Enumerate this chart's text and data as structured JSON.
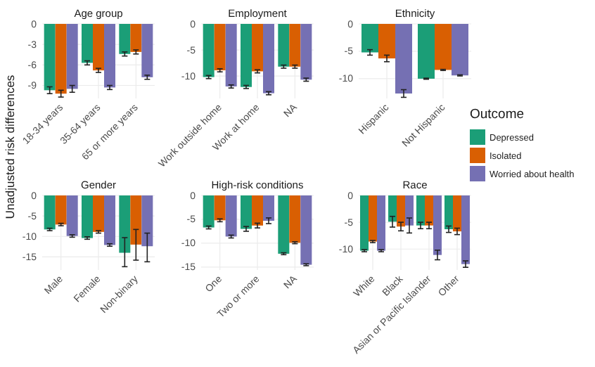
{
  "chart_data": [
    {
      "type": "bar",
      "title": "Age group",
      "ylabel": "Unadjusted risk differences",
      "legend_title": "Outcome",
      "legend": "right",
      "grid": true,
      "categories": [
        "18-34 years",
        "35-64 years",
        "65 or more years"
      ],
      "ylim": [
        -10.9,
        0
      ],
      "yticks": [
        0,
        -3,
        -6,
        -9
      ],
      "series": [
        {
          "name": "Depressed",
          "color": "#1b9e77",
          "values": [
            -9.7,
            -5.7,
            -4.4
          ],
          "errors": [
            0.5,
            0.3,
            0.3
          ]
        },
        {
          "name": "Isolated",
          "color": "#d95f02",
          "values": [
            -10.2,
            -6.8,
            -4.1
          ],
          "errors": [
            0.5,
            0.3,
            0.3
          ]
        },
        {
          "name": "Worried about health",
          "color": "#7570b3",
          "values": [
            -9.5,
            -9.3,
            -7.8
          ],
          "errors": [
            0.5,
            0.3,
            0.3
          ]
        }
      ]
    },
    {
      "type": "bar",
      "title": "Employment",
      "grid": true,
      "categories": [
        "Work outside home",
        "Work at home",
        "NA"
      ],
      "ylim": [
        -14.3,
        0
      ],
      "yticks": [
        0,
        -5,
        -10
      ],
      "series": [
        {
          "color": "#1b9e77",
          "values": [
            -10.2,
            -12.1,
            -8.2
          ],
          "errors": [
            0.3,
            0.3,
            0.3
          ]
        },
        {
          "color": "#d95f02",
          "values": [
            -8.9,
            -9.1,
            -8.2
          ],
          "errors": [
            0.3,
            0.3,
            0.3
          ]
        },
        {
          "color": "#7570b3",
          "values": [
            -12.0,
            -13.3,
            -10.7
          ],
          "errors": [
            0.3,
            0.3,
            0.3
          ]
        }
      ]
    },
    {
      "type": "bar",
      "title": "Ethnicity",
      "grid": true,
      "categories": [
        "Hispanic",
        "Not Hispanic"
      ],
      "ylim": [
        -13.6,
        0
      ],
      "yticks": [
        0,
        -5,
        -10
      ],
      "series": [
        {
          "color": "#1b9e77",
          "values": [
            -5.2,
            -10.0
          ],
          "errors": [
            0.5,
            0.1
          ]
        },
        {
          "color": "#d95f02",
          "values": [
            -6.3,
            -8.4
          ],
          "errors": [
            0.6,
            0.1
          ]
        },
        {
          "color": "#7570b3",
          "values": [
            -12.7,
            -9.4
          ],
          "errors": [
            0.7,
            0.1
          ]
        }
      ]
    },
    {
      "type": "bar",
      "title": "Gender",
      "grid": true,
      "categories": [
        "Male",
        "Female",
        "Non-binary"
      ],
      "ylim": [
        -18.2,
        0
      ],
      "yticks": [
        0,
        -5,
        -10,
        -15
      ],
      "series": [
        {
          "color": "#1b9e77",
          "values": [
            -8.3,
            -10.4,
            -14.0
          ],
          "errors": [
            0.3,
            0.3,
            [
              -17.4,
              -10.3
            ]
          ]
        },
        {
          "color": "#d95f02",
          "values": [
            -7.1,
            -8.9,
            -12.0
          ],
          "errors": [
            0.3,
            0.3,
            [
              -15.8,
              -8.3
            ]
          ]
        },
        {
          "color": "#7570b3",
          "values": [
            -9.9,
            -12.1,
            -12.4
          ],
          "errors": [
            0.3,
            0.3,
            [
              -16.2,
              -9.2
            ]
          ]
        }
      ]
    },
    {
      "type": "bar",
      "title": "High-risk conditions",
      "grid": true,
      "categories": [
        "One",
        "Two or more",
        "NA"
      ],
      "ylim": [
        -15.6,
        0
      ],
      "yticks": [
        0,
        -5,
        -10,
        -15
      ],
      "series": [
        {
          "color": "#1b9e77",
          "values": [
            -6.7,
            -7.0,
            -12.2
          ],
          "errors": [
            0.3,
            0.5,
            0.2
          ]
        },
        {
          "color": "#d95f02",
          "values": [
            -5.2,
            -6.3,
            -9.9
          ],
          "errors": [
            0.3,
            0.5,
            0.2
          ]
        },
        {
          "color": "#7570b3",
          "values": [
            -8.6,
            -5.3,
            -14.5
          ],
          "errors": [
            0.3,
            0.6,
            0.2
          ]
        }
      ]
    },
    {
      "type": "bar",
      "title": "Race",
      "grid": true,
      "categories": [
        "White",
        "Black",
        "Asian or Pacific Islander",
        "Other"
      ],
      "ylim": [
        -13.9,
        0
      ],
      "yticks": [
        0,
        -5,
        -10
      ],
      "series": [
        {
          "color": "#1b9e77",
          "values": [
            -10.3,
            -4.9,
            -5.6,
            -6.3
          ],
          "errors": [
            0.2,
            1.0,
            0.6,
            0.6
          ]
        },
        {
          "color": "#d95f02",
          "values": [
            -8.6,
            -5.8,
            -5.6,
            -6.7
          ],
          "errors": [
            0.2,
            0.8,
            0.6,
            0.6
          ]
        },
        {
          "color": "#7570b3",
          "values": [
            -10.3,
            -5.6,
            -11.1,
            -12.8
          ],
          "errors": [
            0.2,
            1.4,
            0.9,
            0.6
          ]
        }
      ]
    }
  ]
}
